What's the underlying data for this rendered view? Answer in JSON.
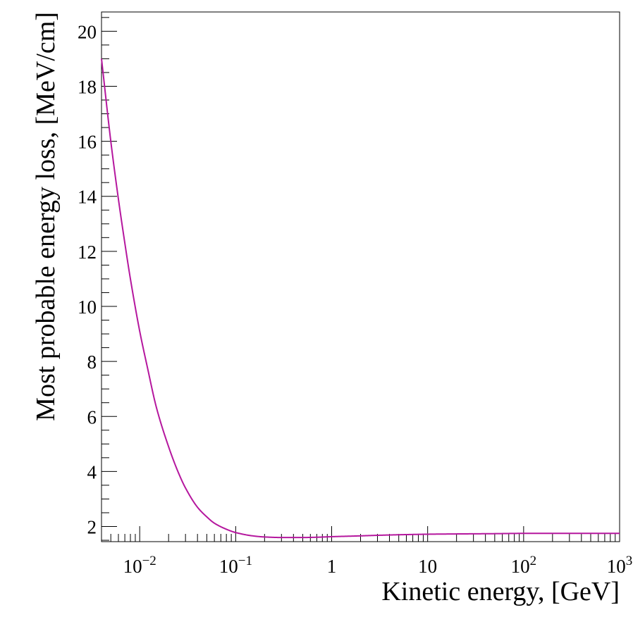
{
  "chart_data": {
    "type": "line",
    "title": "",
    "xlabel": "Kinetic energy, [GeV]",
    "ylabel": "Most probable energy loss, [MeV/cm]",
    "x_scale": "log",
    "xlim": [
      0.004,
      1000
    ],
    "ylim": [
      1.45,
      20.7
    ],
    "grid": false,
    "legend": "none",
    "x_ticks": [
      {
        "value": 0.01,
        "base": "10",
        "exp": "−2"
      },
      {
        "value": 0.1,
        "base": "10",
        "exp": "−1"
      },
      {
        "value": 1,
        "base": "1",
        "exp": ""
      },
      {
        "value": 10,
        "base": "10",
        "exp": ""
      },
      {
        "value": 100,
        "base": "10",
        "exp": "2"
      },
      {
        "value": 1000,
        "base": "10",
        "exp": "3"
      }
    ],
    "y_ticks": [
      "2",
      "4",
      "6",
      "8",
      "10",
      "12",
      "14",
      "16",
      "18",
      "20"
    ],
    "series": [
      {
        "color": "#b5179e",
        "x": [
          0.004,
          0.005,
          0.006,
          0.007,
          0.008,
          0.01,
          0.012,
          0.015,
          0.02,
          0.025,
          0.03,
          0.04,
          0.05,
          0.06,
          0.08,
          0.1,
          0.15,
          0.2,
          0.3,
          0.5,
          0.7,
          1,
          2,
          3,
          5,
          10,
          20,
          50,
          100,
          300,
          1000
        ],
        "y": [
          19.0,
          16.0,
          13.9,
          12.3,
          11.0,
          9.1,
          7.8,
          6.3,
          4.9,
          4.0,
          3.4,
          2.7,
          2.35,
          2.12,
          1.9,
          1.78,
          1.66,
          1.62,
          1.6,
          1.6,
          1.61,
          1.63,
          1.66,
          1.68,
          1.7,
          1.72,
          1.73,
          1.74,
          1.75,
          1.75,
          1.75
        ]
      }
    ]
  }
}
